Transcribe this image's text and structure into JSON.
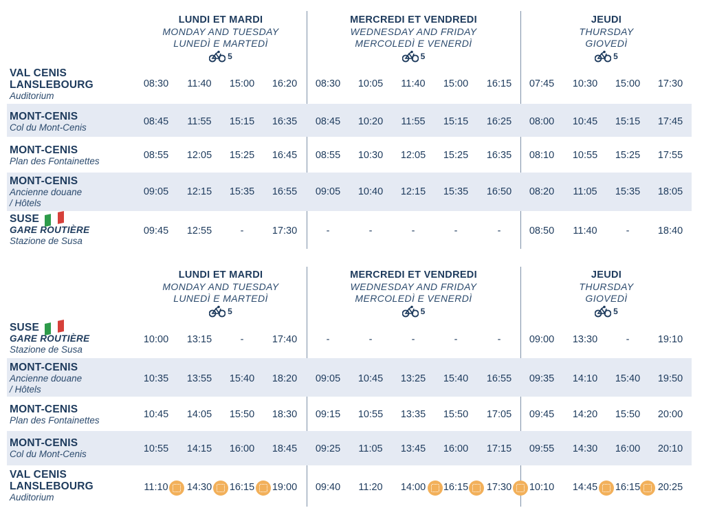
{
  "headers": [
    {
      "fr": "LUNDI ET MARDI",
      "en": "MONDAY AND TUESDAY",
      "it": "LUNEDÌ E MARTEDÌ",
      "bike": "5"
    },
    {
      "fr": "MERCREDI ET VENDREDI",
      "en": "WEDNESDAY AND FRIDAY",
      "it": "MERCOLEDÌ E VENERDÌ",
      "bike": "5"
    },
    {
      "fr": "JEUDI",
      "en": "THURSDAY",
      "it": "GIOVEDÌ",
      "bike": "5"
    }
  ],
  "table1": {
    "rows": [
      {
        "name": "VAL CENIS LANSLEBOURG",
        "name1": "VAL CENIS",
        "name2": "LANSLEBOURG",
        "sub": "Auditorium",
        "times": [
          "08:30",
          "11:40",
          "15:00",
          "16:20",
          "08:30",
          "10:05",
          "11:40",
          "15:00",
          "16:15",
          "07:45",
          "10:30",
          "15:00",
          "17:30"
        ]
      },
      {
        "name": "MONT-CENIS",
        "sub": "Col du Mont-Cenis",
        "times": [
          "08:45",
          "11:55",
          "15:15",
          "16:35",
          "08:45",
          "10:20",
          "11:55",
          "15:15",
          "16:25",
          "08:00",
          "10:45",
          "15:15",
          "17:45"
        ]
      },
      {
        "name": "MONT-CENIS",
        "sub": "Plan des Fontainettes",
        "times": [
          "08:55",
          "12:05",
          "15:25",
          "16:45",
          "08:55",
          "10:30",
          "12:05",
          "15:25",
          "16:35",
          "08:10",
          "10:55",
          "15:25",
          "17:55"
        ]
      },
      {
        "name": "MONT-CENIS",
        "sub": "Ancienne douane",
        "sub2": "/ Hôtels",
        "times": [
          "09:05",
          "12:15",
          "15:35",
          "16:55",
          "09:05",
          "10:40",
          "12:15",
          "15:35",
          "16:50",
          "08:20",
          "11:05",
          "15:35",
          "18:05"
        ]
      },
      {
        "name": "SUSE",
        "subu": "GARE ROUTIÈRE",
        "sub": "Stazione de Susa",
        "times": [
          "09:45",
          "12:55",
          "-",
          "17:30",
          "-",
          "-",
          "-",
          "-",
          "-",
          "08:50",
          "11:40",
          "-",
          "18:40"
        ]
      }
    ]
  },
  "table2": {
    "rows": [
      {
        "name": "SUSE",
        "subu": "GARE ROUTIÈRE",
        "sub": "Stazione de Susa",
        "times": [
          "10:00",
          "13:15",
          "-",
          "17:40",
          "-",
          "-",
          "-",
          "-",
          "-",
          "09:00",
          "13:30",
          "-",
          "19:10"
        ]
      },
      {
        "name": "MONT-CENIS",
        "sub": "Ancienne douane",
        "sub2": "/ Hôtels",
        "times": [
          "10:35",
          "13:55",
          "15:40",
          "18:20",
          "09:05",
          "10:45",
          "13:25",
          "15:40",
          "16:55",
          "09:35",
          "14:10",
          "15:40",
          "19:50"
        ]
      },
      {
        "name": "MONT-CENIS",
        "sub": "Plan des Fontainettes",
        "times": [
          "10:45",
          "14:05",
          "15:50",
          "18:30",
          "09:15",
          "10:55",
          "13:35",
          "15:50",
          "17:05",
          "09:45",
          "14:20",
          "15:50",
          "20:00"
        ]
      },
      {
        "name": "MONT-CENIS",
        "sub": "Col du Mont-Cenis",
        "times": [
          "10:55",
          "14:15",
          "16:00",
          "18:45",
          "09:25",
          "11:05",
          "13:45",
          "16:00",
          "17:15",
          "09:55",
          "14:30",
          "16:00",
          "20:10"
        ]
      },
      {
        "name": "VAL CENIS LANSLEBOURG",
        "name1": "VAL CENIS",
        "name2": "LANSLEBOURG",
        "sub": "Auditorium",
        "times": [
          "11:10",
          "14:30",
          "16:15",
          "19:00",
          "09:40",
          "11:20",
          "14:00",
          "16:15",
          "17:30",
          "10:10",
          "14:45",
          "16:15",
          "20:25"
        ]
      }
    ]
  },
  "colors": {
    "text": "#1d3a5c",
    "shade": "#e5eaf3",
    "accent": "#f2b05a",
    "flag_green": "#2e9b4a",
    "flag_red": "#d6403a"
  },
  "icons": [
    "bicycle-icon",
    "italy-flag-icon",
    "connection-icon"
  ]
}
